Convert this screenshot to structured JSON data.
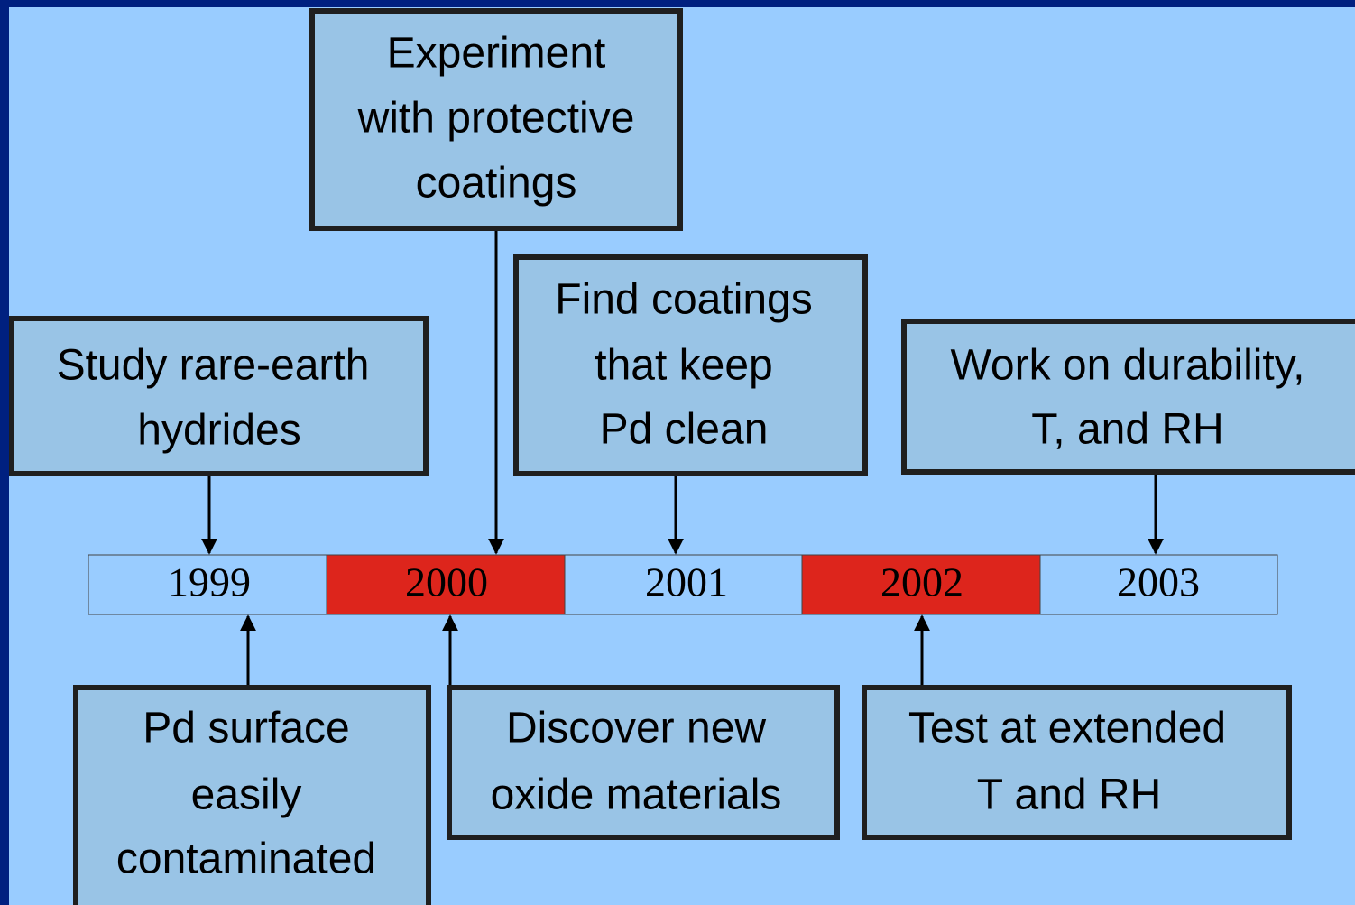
{
  "years": [
    "1999",
    "2000",
    "2001",
    "2002",
    "2003"
  ],
  "top_events": [
    {
      "lines": [
        "Study rare-earth",
        "hydrides"
      ]
    },
    {
      "lines": [
        "Experiment",
        "with protective",
        "coatings"
      ]
    },
    {
      "lines": [
        "Find coatings",
        "that keep",
        "Pd clean"
      ]
    },
    {
      "lines": [
        "Work on durability,",
        "T, and RH"
      ]
    }
  ],
  "bottom_events": [
    {
      "lines": [
        "Pd surface",
        "easily",
        "contaminated"
      ]
    },
    {
      "lines": [
        "Discover new",
        "oxide materials"
      ]
    },
    {
      "lines": [
        "Test at extended",
        "T and RH"
      ]
    }
  ]
}
